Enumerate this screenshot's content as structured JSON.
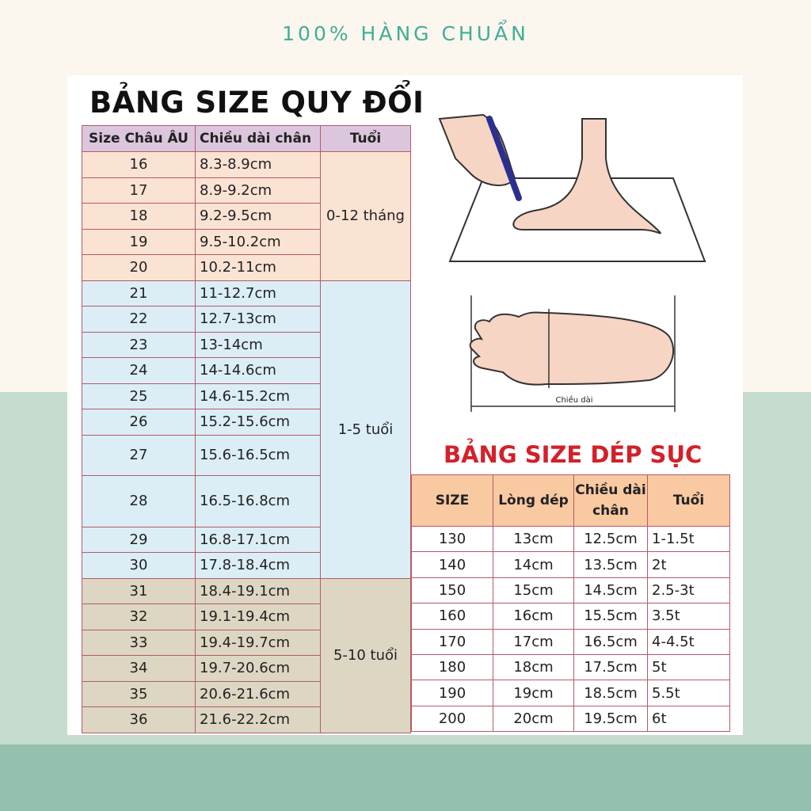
{
  "brand": "100% HÀNG CHUẨN",
  "colors": {
    "accent": "#3fae98",
    "title_red": "#d4202a",
    "group_infant": "#fbe3d4",
    "group_toddler": "#dbeef6",
    "group_child": "#ddd6c3",
    "header_lavender": "#dcc6dd",
    "header_orange": "#f9c9a2"
  },
  "table1": {
    "title": "BẢNG SIZE QUY ĐỔI",
    "headers": [
      "Size Châu ÂU",
      "Chiều dài chân",
      "Tuổi"
    ],
    "groups": [
      {
        "age": "0-12 tháng",
        "rows": [
          [
            "16",
            "8.3-8.9cm"
          ],
          [
            "17",
            "8.9-9.2cm"
          ],
          [
            "18",
            "9.2-9.5cm"
          ],
          [
            "19",
            "9.5-10.2cm"
          ],
          [
            "20",
            "10.2-11cm"
          ]
        ]
      },
      {
        "age": "1-5 tuổi",
        "rows": [
          [
            "21",
            "11-12.7cm"
          ],
          [
            "22",
            "12.7-13cm"
          ],
          [
            "23",
            "13-14cm"
          ],
          [
            "24",
            "14-14.6cm"
          ],
          [
            "25",
            "14.6-15.2cm"
          ],
          [
            "26",
            "15.2-15.6cm"
          ],
          [
            "27",
            "15.6-16.5cm"
          ],
          [
            "28",
            "16.5-16.8cm"
          ],
          [
            "29",
            "16.8-17.1cm"
          ],
          [
            "30",
            "17.8-18.4cm"
          ]
        ]
      },
      {
        "age": "5-10 tuổi",
        "rows": [
          [
            "31",
            "18.4-19.1cm"
          ],
          [
            "32",
            "19.1-19.4cm"
          ],
          [
            "33",
            "19.4-19.7cm"
          ],
          [
            "34",
            "19.7-20.6cm"
          ],
          [
            "35",
            "20.6-21.6cm"
          ],
          [
            "36",
            "21.6-22.2cm"
          ]
        ]
      }
    ]
  },
  "illustration": {
    "label": "Chiều dài"
  },
  "table2": {
    "title": "BẢNG SIZE DÉP SỤC",
    "headers": [
      "SIZE",
      "Lòng dép",
      "Chiều dài chân",
      "Tuổi"
    ],
    "rows": [
      [
        "130",
        "13cm",
        "12.5cm",
        "1-1.5t"
      ],
      [
        "140",
        "14cm",
        "13.5cm",
        "2t"
      ],
      [
        "150",
        "15cm",
        "14.5cm",
        "2.5-3t"
      ],
      [
        "160",
        "16cm",
        "15.5cm",
        "3.5t"
      ],
      [
        "170",
        "17cm",
        "16.5cm",
        "4-4.5t"
      ],
      [
        "180",
        "18cm",
        "17.5cm",
        "5t"
      ],
      [
        "190",
        "19cm",
        "18.5cm",
        "5.5t"
      ],
      [
        "200",
        "20cm",
        "19.5cm",
        "6t"
      ]
    ]
  }
}
